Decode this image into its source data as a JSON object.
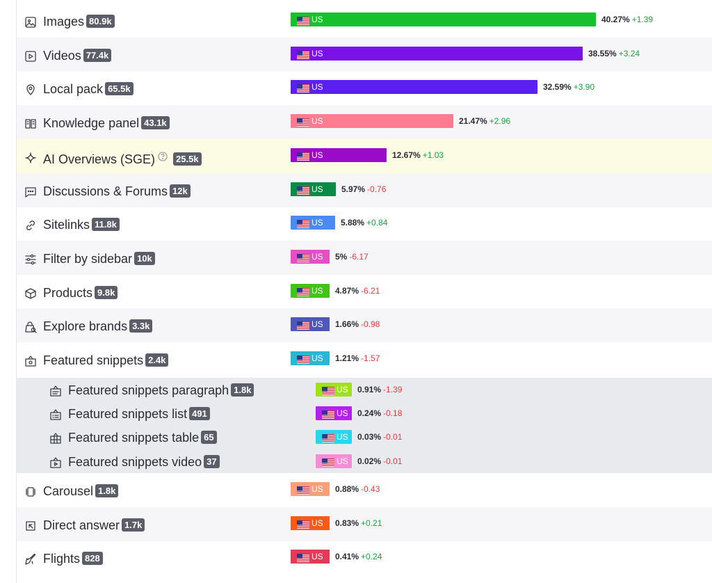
{
  "flag_code": "US",
  "rows": [
    {
      "name": "Images",
      "count": "80.9k",
      "icon": "image-icon",
      "pct": "40.27%",
      "delta": "+1.39",
      "color": "#17c12e",
      "fraction": 1.0,
      "dir": "pos"
    },
    {
      "name": "Videos",
      "count": "77.4k",
      "icon": "video-icon",
      "pct": "38.55%",
      "delta": "+3.24",
      "color": "#7a11e8",
      "fraction": 0.957,
      "dir": "pos"
    },
    {
      "name": "Local pack",
      "count": "65.5k",
      "icon": "location-pin-icon",
      "pct": "32.59%",
      "delta": "+3.90",
      "color": "#5b1ff0",
      "fraction": 0.809,
      "dir": "pos"
    },
    {
      "name": "Knowledge panel",
      "count": "43.1k",
      "icon": "book-icon",
      "pct": "21.47%",
      "delta": "+2.96",
      "color": "#ff7b8f",
      "fraction": 0.533,
      "dir": "pos"
    },
    {
      "name": "AI Overviews (SGE)",
      "count": "25.5k",
      "icon": "sparkle-icon",
      "pct": "12.67%",
      "delta": "+1.03",
      "color": "#9a0ac9",
      "fraction": 0.315,
      "dir": "pos",
      "help": true,
      "highlight": true
    },
    {
      "name": "Discussions & Forums",
      "count": "12k",
      "icon": "chat-icon",
      "pct": "5.97%",
      "delta": "-0.76",
      "color": "#0a8a44",
      "fraction": 0.148,
      "dir": "neg"
    },
    {
      "name": "Sitelinks",
      "count": "11.8k",
      "icon": "link-icon",
      "pct": "5.88%",
      "delta": "+0.84",
      "color": "#4a8af2",
      "fraction": 0.146,
      "dir": "pos"
    },
    {
      "name": "Filter by sidebar",
      "count": "10k",
      "icon": "sliders-icon",
      "pct": "5%",
      "delta": "-6.17",
      "color": "#e24fc7",
      "fraction": 0.124,
      "dir": "neg"
    },
    {
      "name": "Products",
      "count": "9.8k",
      "icon": "box-icon",
      "pct": "4.87%",
      "delta": "-6.21",
      "color": "#43c21a",
      "fraction": 0.121,
      "dir": "neg"
    },
    {
      "name": "Explore brands",
      "count": "3.3k",
      "icon": "shopping-bag-icon",
      "pct": "1.66%",
      "delta": "-0.98",
      "color": "#4e58b8",
      "fraction": 0.041,
      "dir": "neg"
    },
    {
      "name": "Featured snippets",
      "count": "2.4k",
      "icon": "featured-snippet-icon",
      "pct": "1.21%",
      "delta": "-1.57",
      "color": "#2cb6cf",
      "fraction": 0.03,
      "dir": "neg"
    }
  ],
  "subrows": [
    {
      "name": "Featured snippets paragraph",
      "count": "1.8k",
      "icon": "snippet-paragraph-icon",
      "pct": "0.91%",
      "delta": "-1.39",
      "color": "#9fe21a",
      "dir": "neg"
    },
    {
      "name": "Featured snippets list",
      "count": "491",
      "icon": "snippet-list-icon",
      "pct": "0.24%",
      "delta": "-0.18",
      "color": "#b41ff2",
      "dir": "neg"
    },
    {
      "name": "Featured snippets table",
      "count": "65",
      "icon": "snippet-table-icon",
      "pct": "0.03%",
      "delta": "-0.01",
      "color": "#26d7ee",
      "dir": "neg"
    },
    {
      "name": "Featured snippets video",
      "count": "37",
      "icon": "snippet-video-icon",
      "pct": "0.02%",
      "delta": "-0.01",
      "color": "#f58ed6",
      "dir": "neg"
    }
  ],
  "bottom_rows": [
    {
      "name": "Carousel",
      "count": "1.8k",
      "icon": "carousel-icon",
      "pct": "0.88%",
      "delta": "-0.43",
      "color": "#f9a07a",
      "fraction": 0.022,
      "dir": "neg"
    },
    {
      "name": "Direct answer",
      "count": "1.7k",
      "icon": "direct-answer-icon",
      "pct": "0.83%",
      "delta": "+0.21",
      "color": "#f75a1c",
      "fraction": 0.021,
      "dir": "pos"
    },
    {
      "name": "Flights",
      "count": "828",
      "icon": "plane-icon",
      "pct": "0.41%",
      "delta": "+0.24",
      "color": "#e33b57",
      "fraction": 0.01,
      "dir": "pos"
    }
  ]
}
